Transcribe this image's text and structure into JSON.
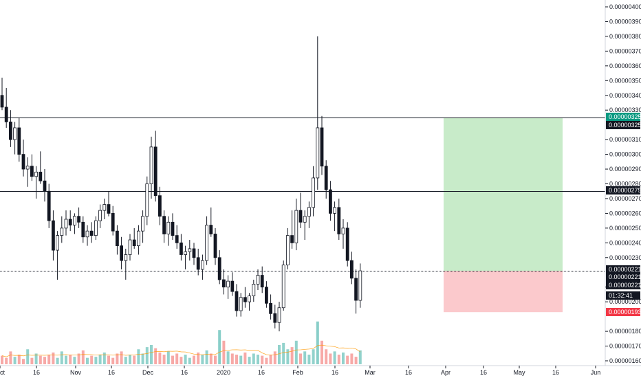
{
  "chart_data": {
    "type": "candlestick",
    "title": "",
    "xlabel": "",
    "ylabel": "",
    "x_axis_labels": [
      "ct",
      "16",
      "Nov",
      "16",
      "Dec",
      "16",
      "2020",
      "16",
      "Feb",
      "16",
      "Mar",
      "16",
      "Apr",
      "16",
      "May",
      "16",
      "Jun"
    ],
    "y_ticks": [
      "0.00000160",
      "0.00000170",
      "0.00000180",
      "0.00000200",
      "0.00000210",
      "0.00000230",
      "0.00000240",
      "0.00000250",
      "0.00000260",
      "0.00000270",
      "0.00000280",
      "0.00000290",
      "0.00000300",
      "0.00000310",
      "0.00000330",
      "0.00000340",
      "0.00000350",
      "0.00000360",
      "0.00000370",
      "0.00000380",
      "0.00000390",
      "0.00000400"
    ],
    "ylim": [
      1.58e-06,
      4.04e-06
    ],
    "horizontal_levels": [
      {
        "value": 3.25e-06,
        "label": "0.00000325"
      },
      {
        "value": 2.75e-06,
        "label": "0.00000275"
      },
      {
        "value": 2.21e-06,
        "label": "0.00000221",
        "style": "dotted"
      }
    ],
    "price_badges": [
      {
        "label": "0.00000325",
        "color": "#089981"
      },
      {
        "label": "0.00000325",
        "color": "#131722"
      },
      {
        "label": "0.00000275",
        "color": "#131722"
      },
      {
        "label": "0.00000221",
        "color": "#131722"
      },
      {
        "label": "0.00000221",
        "color": "#131722"
      },
      {
        "label": "0.00000221",
        "color": "#131722"
      },
      {
        "label": "01:32:41",
        "color": "#131722"
      },
      {
        "label": "0.00000193",
        "color": "#f23645"
      }
    ],
    "position_tool": {
      "entry": 2.21e-06,
      "target": 3.25e-06,
      "stop": 1.93e-06,
      "profit_color": "#c8ebc9",
      "loss_color": "#fbc9cc"
    },
    "candles": [
      {
        "o": 3.4e-06,
        "h": 3.52e-06,
        "l": 3.3e-06,
        "c": 3.32e-06
      },
      {
        "o": 3.32e-06,
        "h": 3.45e-06,
        "l": 3.18e-06,
        "c": 3.22e-06
      },
      {
        "o": 3.22e-06,
        "h": 3.3e-06,
        "l": 3.05e-06,
        "c": 3.1e-06
      },
      {
        "o": 3.1e-06,
        "h": 3.22e-06,
        "l": 3e-06,
        "c": 3.18e-06
      },
      {
        "o": 3.18e-06,
        "h": 3.25e-06,
        "l": 2.95e-06,
        "c": 3e-06
      },
      {
        "o": 3e-06,
        "h": 3.1e-06,
        "l": 2.85e-06,
        "c": 2.9e-06
      },
      {
        "o": 2.9e-06,
        "h": 2.98e-06,
        "l": 2.78e-06,
        "c": 2.92e-06
      },
      {
        "o": 2.92e-06,
        "h": 3e-06,
        "l": 2.82e-06,
        "c": 2.85e-06
      },
      {
        "o": 2.85e-06,
        "h": 2.92e-06,
        "l": 2.7e-06,
        "c": 2.88e-06
      },
      {
        "o": 2.88e-06,
        "h": 3.02e-06,
        "l": 2.8e-06,
        "c": 2.82e-06
      },
      {
        "o": 2.82e-06,
        "h": 2.9e-06,
        "l": 2.68e-06,
        "c": 2.75e-06
      },
      {
        "o": 2.75e-06,
        "h": 2.8e-06,
        "l": 2.5e-06,
        "c": 2.55e-06
      },
      {
        "o": 2.55e-06,
        "h": 2.62e-06,
        "l": 2.28e-06,
        "c": 2.35e-06
      },
      {
        "o": 2.35e-06,
        "h": 2.48e-06,
        "l": 2.15e-06,
        "c": 2.45e-06
      },
      {
        "o": 2.45e-06,
        "h": 2.58e-06,
        "l": 2.4e-06,
        "c": 2.5e-06
      },
      {
        "o": 2.5e-06,
        "h": 2.62e-06,
        "l": 2.45e-06,
        "c": 2.56e-06
      },
      {
        "o": 2.56e-06,
        "h": 2.62e-06,
        "l": 2.48e-06,
        "c": 2.52e-06
      },
      {
        "o": 2.52e-06,
        "h": 2.6e-06,
        "l": 2.46e-06,
        "c": 2.58e-06
      },
      {
        "o": 2.58e-06,
        "h": 2.64e-06,
        "l": 2.5e-06,
        "c": 2.54e-06
      },
      {
        "o": 2.54e-06,
        "h": 2.58e-06,
        "l": 2.4e-06,
        "c": 2.44e-06
      },
      {
        "o": 2.44e-06,
        "h": 2.52e-06,
        "l": 2.38e-06,
        "c": 2.48e-06
      },
      {
        "o": 2.48e-06,
        "h": 2.54e-06,
        "l": 2.4e-06,
        "c": 2.45e-06
      },
      {
        "o": 2.45e-06,
        "h": 2.58e-06,
        "l": 2.42e-06,
        "c": 2.55e-06
      },
      {
        "o": 2.55e-06,
        "h": 2.66e-06,
        "l": 2.5e-06,
        "c": 2.62e-06
      },
      {
        "o": 2.62e-06,
        "h": 2.7e-06,
        "l": 2.56e-06,
        "c": 2.66e-06
      },
      {
        "o": 2.66e-06,
        "h": 2.75e-06,
        "l": 2.58e-06,
        "c": 2.6e-06
      },
      {
        "o": 2.6e-06,
        "h": 2.65e-06,
        "l": 2.45e-06,
        "c": 2.48e-06
      },
      {
        "o": 2.48e-06,
        "h": 2.52e-06,
        "l": 2.32e-06,
        "c": 2.38e-06
      },
      {
        "o": 2.38e-06,
        "h": 2.44e-06,
        "l": 2.22e-06,
        "c": 2.28e-06
      },
      {
        "o": 2.28e-06,
        "h": 2.36e-06,
        "l": 2.15e-06,
        "c": 2.32e-06
      },
      {
        "o": 2.32e-06,
        "h": 2.46e-06,
        "l": 2.28e-06,
        "c": 2.42e-06
      },
      {
        "o": 2.42e-06,
        "h": 2.5e-06,
        "l": 2.36e-06,
        "c": 2.38e-06
      },
      {
        "o": 2.38e-06,
        "h": 2.52e-06,
        "l": 2.32e-06,
        "c": 2.48e-06
      },
      {
        "o": 2.48e-06,
        "h": 2.62e-06,
        "l": 2.4e-06,
        "c": 2.58e-06
      },
      {
        "o": 2.58e-06,
        "h": 2.85e-06,
        "l": 2.52e-06,
        "c": 2.8e-06
      },
      {
        "o": 2.8e-06,
        "h": 3.12e-06,
        "l": 2.7e-06,
        "c": 3.05e-06
      },
      {
        "o": 3.05e-06,
        "h": 3.16e-06,
        "l": 2.68e-06,
        "c": 2.72e-06
      },
      {
        "o": 2.72e-06,
        "h": 2.78e-06,
        "l": 2.52e-06,
        "c": 2.58e-06
      },
      {
        "o": 2.58e-06,
        "h": 2.62e-06,
        "l": 2.4e-06,
        "c": 2.46e-06
      },
      {
        "o": 2.46e-06,
        "h": 2.58e-06,
        "l": 2.38e-06,
        "c": 2.54e-06
      },
      {
        "o": 2.54e-06,
        "h": 2.6e-06,
        "l": 2.42e-06,
        "c": 2.45e-06
      },
      {
        "o": 2.45e-06,
        "h": 2.52e-06,
        "l": 2.36e-06,
        "c": 2.4e-06
      },
      {
        "o": 2.4e-06,
        "h": 2.46e-06,
        "l": 2.28e-06,
        "c": 2.32e-06
      },
      {
        "o": 2.32e-06,
        "h": 2.38e-06,
        "l": 2.22e-06,
        "c": 2.34e-06
      },
      {
        "o": 2.34e-06,
        "h": 2.42e-06,
        "l": 2.28e-06,
        "c": 2.36e-06
      },
      {
        "o": 2.36e-06,
        "h": 2.4e-06,
        "l": 2.25e-06,
        "c": 2.3e-06
      },
      {
        "o": 2.3e-06,
        "h": 2.36e-06,
        "l": 2.18e-06,
        "c": 2.22e-06
      },
      {
        "o": 2.22e-06,
        "h": 2.32e-06,
        "l": 2.15e-06,
        "c": 2.28e-06
      },
      {
        "o": 2.28e-06,
        "h": 2.58e-06,
        "l": 2.25e-06,
        "c": 2.52e-06
      },
      {
        "o": 2.52e-06,
        "h": 2.64e-06,
        "l": 2.44e-06,
        "c": 2.46e-06
      },
      {
        "o": 2.46e-06,
        "h": 2.5e-06,
        "l": 2.25e-06,
        "c": 2.3e-06
      },
      {
        "o": 2.3e-06,
        "h": 2.35e-06,
        "l": 2.12e-06,
        "c": 2.15e-06
      },
      {
        "o": 2.15e-06,
        "h": 2.22e-06,
        "l": 2.05e-06,
        "c": 2.1e-06
      },
      {
        "o": 2.1e-06,
        "h": 2.18e-06,
        "l": 2.02e-06,
        "c": 2.14e-06
      },
      {
        "o": 2.14e-06,
        "h": 2.2e-06,
        "l": 2.04e-06,
        "c": 2.07e-06
      },
      {
        "o": 2.07e-06,
        "h": 2.12e-06,
        "l": 1.9e-06,
        "c": 1.94e-06
      },
      {
        "o": 1.94e-06,
        "h": 2.06e-06,
        "l": 1.9e-06,
        "c": 2.03e-06
      },
      {
        "o": 2.03e-06,
        "h": 2.1e-06,
        "l": 1.96e-06,
        "c": 2e-06
      },
      {
        "o": 2e-06,
        "h": 2.06e-06,
        "l": 1.94e-06,
        "c": 2.04e-06
      },
      {
        "o": 2.04e-06,
        "h": 2.15e-06,
        "l": 2e-06,
        "c": 2.12e-06
      },
      {
        "o": 2.12e-06,
        "h": 2.22e-06,
        "l": 2.08e-06,
        "c": 2.18e-06
      },
      {
        "o": 2.18e-06,
        "h": 2.24e-06,
        "l": 2.06e-06,
        "c": 2.1e-06
      },
      {
        "o": 2.1e-06,
        "h": 2.14e-06,
        "l": 1.96e-06,
        "c": 1.99e-06
      },
      {
        "o": 1.99e-06,
        "h": 2.05e-06,
        "l": 1.88e-06,
        "c": 1.92e-06
      },
      {
        "o": 1.92e-06,
        "h": 1.98e-06,
        "l": 1.82e-06,
        "c": 1.86e-06
      },
      {
        "o": 1.86e-06,
        "h": 2e-06,
        "l": 1.8e-06,
        "c": 1.96e-06
      },
      {
        "o": 1.96e-06,
        "h": 2.28e-06,
        "l": 1.94e-06,
        "c": 2.25e-06
      },
      {
        "o": 2.25e-06,
        "h": 2.5e-06,
        "l": 2.22e-06,
        "c": 2.45e-06
      },
      {
        "o": 2.45e-06,
        "h": 2.62e-06,
        "l": 2.36e-06,
        "c": 2.4e-06
      },
      {
        "o": 2.4e-06,
        "h": 2.7e-06,
        "l": 2.35e-06,
        "c": 2.62e-06
      },
      {
        "o": 2.62e-06,
        "h": 2.74e-06,
        "l": 2.5e-06,
        "c": 2.54e-06
      },
      {
        "o": 2.54e-06,
        "h": 2.62e-06,
        "l": 2.42e-06,
        "c": 2.58e-06
      },
      {
        "o": 2.58e-06,
        "h": 2.68e-06,
        "l": 2.5e-06,
        "c": 2.64e-06
      },
      {
        "o": 2.64e-06,
        "h": 2.92e-06,
        "l": 2.58e-06,
        "c": 2.84e-06
      },
      {
        "o": 2.84e-06,
        "h": 3.8e-06,
        "l": 2.76e-06,
        "c": 3.18e-06
      },
      {
        "o": 3.18e-06,
        "h": 3.26e-06,
        "l": 2.86e-06,
        "c": 2.92e-06
      },
      {
        "o": 2.92e-06,
        "h": 2.96e-06,
        "l": 2.7e-06,
        "c": 2.76e-06
      },
      {
        "o": 2.76e-06,
        "h": 2.82e-06,
        "l": 2.55e-06,
        "c": 2.6e-06
      },
      {
        "o": 2.6e-06,
        "h": 2.68e-06,
        "l": 2.48e-06,
        "c": 2.64e-06
      },
      {
        "o": 2.64e-06,
        "h": 2.7e-06,
        "l": 2.42e-06,
        "c": 2.46e-06
      },
      {
        "o": 2.46e-06,
        "h": 2.56e-06,
        "l": 2.36e-06,
        "c": 2.5e-06
      },
      {
        "o": 2.5e-06,
        "h": 2.54e-06,
        "l": 2.24e-06,
        "c": 2.28e-06
      },
      {
        "o": 2.28e-06,
        "h": 2.34e-06,
        "l": 2.12e-06,
        "c": 2.16e-06
      },
      {
        "o": 2.16e-06,
        "h": 2.22e-06,
        "l": 1.92e-06,
        "c": 2.01e-06
      },
      {
        "o": 2.01e-06,
        "h": 2.26e-06,
        "l": 1.96e-06,
        "c": 2.21e-06
      }
    ],
    "volumes": [
      8,
      6,
      12,
      7,
      9,
      5,
      14,
      6,
      10,
      8,
      7,
      9,
      11,
      6,
      12,
      8,
      9,
      7,
      10,
      13,
      6,
      8,
      7,
      9,
      11,
      8,
      6,
      10,
      12,
      7,
      9,
      8,
      14,
      10,
      16,
      18,
      15,
      11,
      9,
      12,
      8,
      10,
      7,
      9,
      6,
      8,
      11,
      9,
      13,
      10,
      8,
      32,
      22,
      12,
      10,
      9,
      8,
      11,
      7,
      10,
      9,
      8,
      6,
      9,
      12,
      18,
      20,
      14,
      16,
      22,
      10,
      12,
      9,
      14,
      40,
      22,
      14,
      10,
      12,
      9,
      11,
      8,
      10,
      7,
      13
    ],
    "volume_highlight": [
      51,
      74
    ]
  }
}
